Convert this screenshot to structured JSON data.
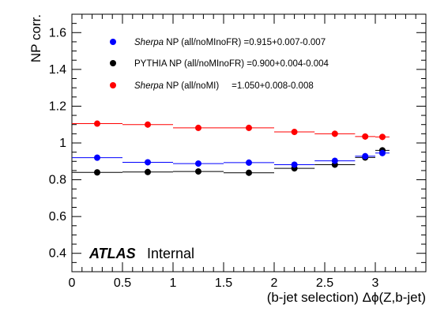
{
  "chart_data": {
    "type": "scatter",
    "xlabel": "(b-jet selection) Δϕ(Z,b-jet)",
    "ylabel": "NP corr.",
    "xlim": [
      0,
      3.5
    ],
    "ylim": [
      0.3,
      1.7
    ],
    "x_ticks": [
      "0",
      "0.5",
      "1",
      "1.5",
      "2",
      "2.5",
      "3"
    ],
    "x_tick_values": [
      0,
      0.5,
      1,
      1.5,
      2,
      2.5,
      3
    ],
    "y_ticks": [
      "0.4",
      "0.6",
      "0.8",
      "1",
      "1.2",
      "1.4",
      "1.6"
    ],
    "y_tick_values": [
      0.4,
      0.6,
      0.8,
      1.0,
      1.2,
      1.4,
      1.6
    ],
    "grid": false,
    "legend_position": "top-left",
    "annotations": {
      "experiment": "ATLAS",
      "status": "Internal"
    },
    "bin_edges": [
      0,
      0.5,
      1.0,
      1.5,
      2.0,
      2.4,
      2.8,
      3.0,
      3.14
    ],
    "x": [
      0.25,
      0.75,
      1.25,
      1.75,
      2.2,
      2.6,
      2.9,
      3.07
    ],
    "series": [
      {
        "name": "Sherpa NP (all/noMInoFR) =0.915+0.007-0.007",
        "name_parts": [
          "Sherpa",
          " NP (all/noMInoFR) =0.915+0.007-0.007"
        ],
        "color": "#0000ff",
        "values": [
          0.92,
          0.895,
          0.888,
          0.893,
          0.882,
          0.903,
          0.928,
          0.945
        ]
      },
      {
        "name": "PYTHIA NP (all/noMInoFR) =0.900+0.004-0.004",
        "name_parts": [
          "",
          "PYTHIA NP (all/noMInoFR) =0.900+0.004-0.004"
        ],
        "color": "#000000",
        "values": [
          0.84,
          0.842,
          0.845,
          0.838,
          0.862,
          0.882,
          0.921,
          0.96
        ]
      },
      {
        "name": "Sherpa NP (all/noMI) =1.050+0.008-0.008",
        "name_parts": [
          "Sherpa",
          " NP (all/noMI)     =1.050+0.008-0.008"
        ],
        "color": "#ff0000",
        "values": [
          1.105,
          1.1,
          1.082,
          1.082,
          1.06,
          1.05,
          1.035,
          1.033
        ]
      }
    ]
  }
}
